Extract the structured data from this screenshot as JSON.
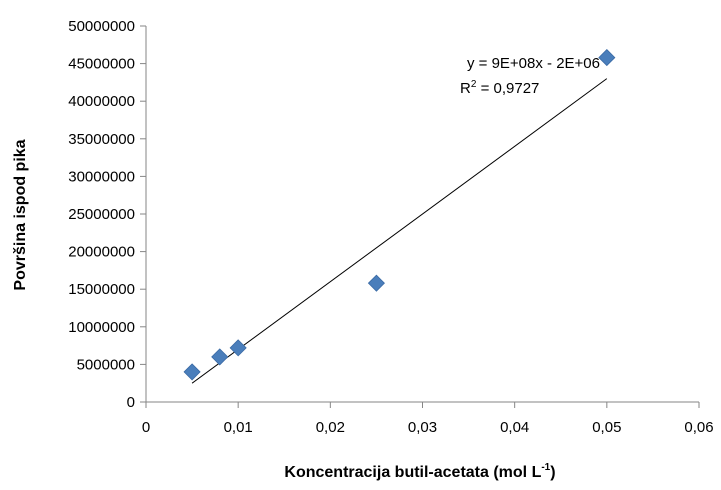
{
  "chart_data": {
    "type": "scatter",
    "xlabel": "Koncentracija butil-acetata (mol L",
    "xlabel_sup": "-1",
    "xlabel_end": ")",
    "ylabel": "Površina ispod pika",
    "xlim": [
      0,
      0.06
    ],
    "ylim": [
      0,
      50000000
    ],
    "x_ticks": [
      0,
      0.01,
      0.02,
      0.03,
      0.04,
      0.05,
      0.06
    ],
    "x_tick_labels": [
      "0",
      "0,01",
      "0,02",
      "0,03",
      "0,04",
      "0,05",
      "0,06"
    ],
    "y_ticks": [
      0,
      5000000,
      10000000,
      15000000,
      20000000,
      25000000,
      30000000,
      35000000,
      40000000,
      45000000,
      50000000
    ],
    "y_tick_labels": [
      "0",
      "5000000",
      "10000000",
      "15000000",
      "20000000",
      "25000000",
      "30000000",
      "35000000",
      "40000000",
      "45000000",
      "50000000"
    ],
    "grid": false,
    "legend": "none",
    "series": [
      {
        "x": [
          0.005,
          0.008,
          0.01,
          0.025,
          0.05
        ],
        "y": [
          4000000,
          6000000,
          7200000,
          15800000,
          45800000
        ],
        "marker": "diamond",
        "color": "#4a7ebb"
      }
    ],
    "trendline": {
      "slope": 900000000,
      "intercept": -2000000,
      "x_range": [
        0.005,
        0.05
      ],
      "color": "#000000",
      "equation": "y = 9E+08x - 2E+06",
      "r2_label": "R",
      "r2_sup": "2",
      "r2_value": " = 0,9727"
    }
  }
}
